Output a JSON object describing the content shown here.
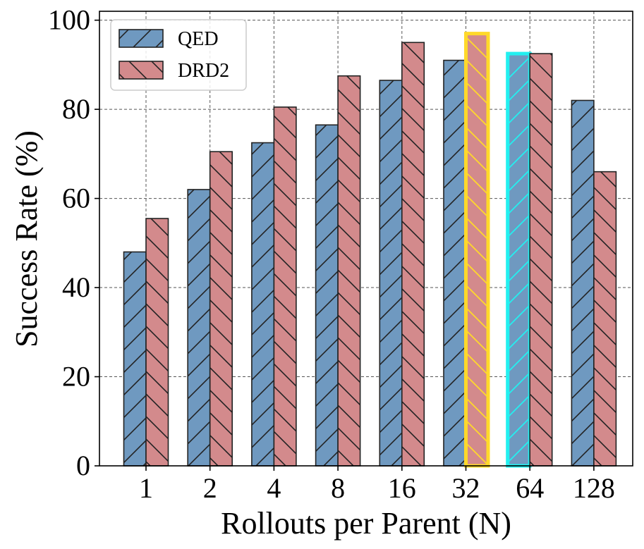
{
  "chart_data": {
    "type": "bar",
    "title": "",
    "xlabel": "Rollouts per Parent (N)",
    "ylabel": "Success Rate (%)",
    "ylim": [
      0,
      102
    ],
    "yticks": [
      0,
      20,
      40,
      60,
      80,
      100
    ],
    "grid": true,
    "legend_position": "top-left",
    "categories": [
      "1",
      "2",
      "4",
      "8",
      "16",
      "32",
      "64",
      "128"
    ],
    "series": [
      {
        "name": "QED",
        "color": "#6f99c0",
        "hatch": "forward-diagonal",
        "values": [
          48,
          62,
          72.5,
          76.5,
          86.5,
          91,
          92.5,
          82
        ]
      },
      {
        "name": "DRD2",
        "color": "#d38a8c",
        "hatch": "back-diagonal",
        "values": [
          55.5,
          70.5,
          80.5,
          87.5,
          95,
          97,
          92.5,
          66
        ]
      }
    ],
    "highlights": [
      {
        "series": "DRD2",
        "category": "32",
        "color": "#ffd92a"
      },
      {
        "series": "QED",
        "category": "64",
        "color": "#22f0f0"
      }
    ]
  }
}
